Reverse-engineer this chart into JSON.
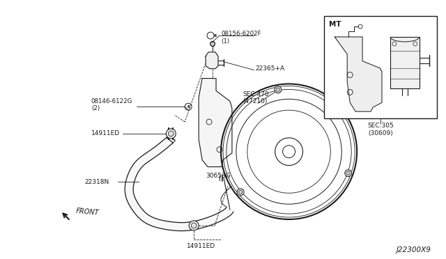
{
  "bg_color": "#ffffff",
  "line_color": "#1a1a1a",
  "figure_width": 6.4,
  "figure_height": 3.72,
  "diagram_code": "J22300X9",
  "labels": {
    "bolt_top": "08156-6202F\n(1)",
    "solenoid": "22365+A",
    "bolt_left": "08146-6122G\n(2)",
    "hose_mid": "14911ED",
    "bracket": "30653G",
    "hose_lower": "22318N",
    "hose_bottom": "14911ED",
    "sec470": "SEC.470\n(47210)",
    "mt_label": "MT",
    "sec305": "SEC.305\n(30609)"
  }
}
